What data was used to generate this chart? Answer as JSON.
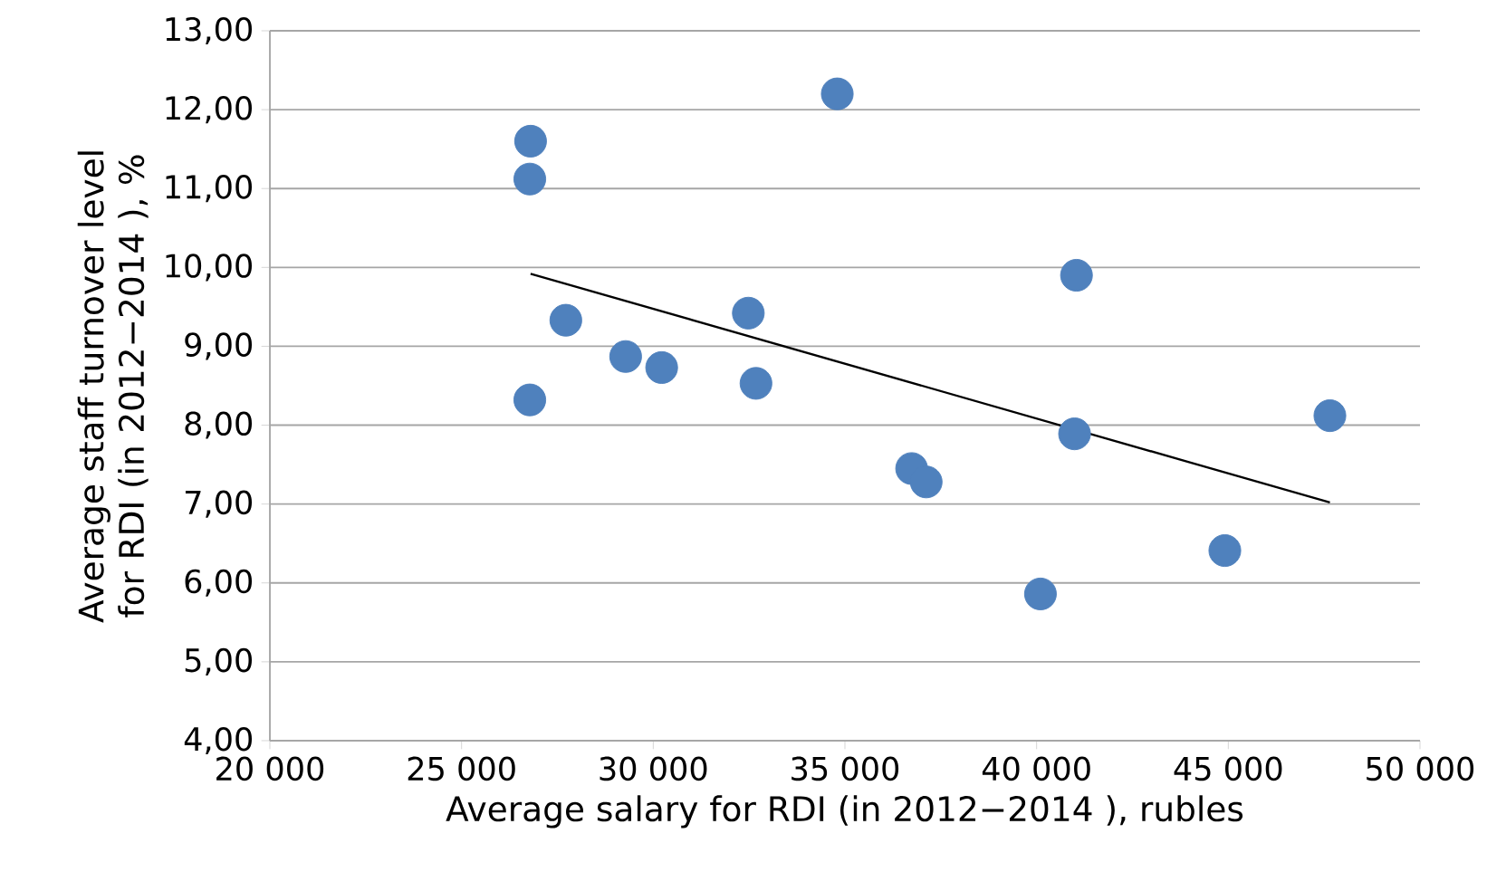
{
  "chart_data": {
    "type": "scatter",
    "xlabel": "Average salary for RDI  (in 2012−2014 ), rubles",
    "ylabel": "Average staff turnover level for RDI (in 2012−2014 ), %",
    "xlim": [
      20000,
      50000
    ],
    "xticks": [
      {
        "value": 20000,
        "label": "20 000"
      },
      {
        "value": 25000,
        "label": "25 000"
      },
      {
        "value": 30000,
        "label": "30 000"
      },
      {
        "value": 35000,
        "label": "35 000"
      },
      {
        "value": 40000,
        "label": "40 000"
      },
      {
        "value": 45000,
        "label": "45 000"
      },
      {
        "value": 50000,
        "label": "50 000"
      }
    ],
    "ylim": [
      4,
      13
    ],
    "yticks": [
      {
        "value": 4,
        "label": "4,00"
      },
      {
        "value": 5,
        "label": "5,00"
      },
      {
        "value": 6,
        "label": "6,00"
      },
      {
        "value": 7,
        "label": "7,00"
      },
      {
        "value": 8,
        "label": "8,00"
      },
      {
        "value": 9,
        "label": "9,00"
      },
      {
        "value": 10,
        "label": "10,00"
      },
      {
        "value": 11,
        "label": "11,00"
      },
      {
        "value": 12,
        "label": "12,00"
      },
      {
        "value": 13,
        "label": "13,00"
      }
    ],
    "grid": "y",
    "series": [
      {
        "color": "#4f81bd",
        "marker": "circle",
        "x": [
          26800,
          26780,
          27720,
          26780,
          29280,
          30220,
          32480,
          32680,
          34800,
          36740,
          37120,
          40100,
          41040,
          40990,
          44910,
          47650
        ],
        "values": [
          11.6,
          11.12,
          9.33,
          8.32,
          8.87,
          8.73,
          9.42,
          8.53,
          12.2,
          7.45,
          7.28,
          5.86,
          9.9,
          7.89,
          6.41,
          8.12
        ]
      },
      {
        "type": "line",
        "color": "#000000",
        "marker": "none",
        "x": [
          26800,
          47650
        ],
        "values": [
          9.92,
          7.02
        ]
      }
    ]
  }
}
